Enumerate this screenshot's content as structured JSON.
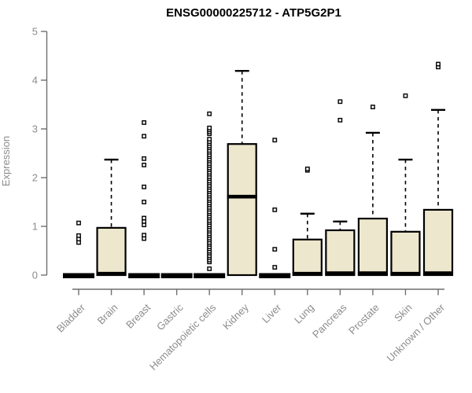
{
  "chart_data": {
    "type": "boxplot",
    "title": "ENSG00000225712 - ATP5G2P1",
    "ylabel": "Expression",
    "xlabel": "",
    "ylim": [
      0,
      5
    ],
    "yticks": [
      0,
      1,
      2,
      3,
      4,
      5
    ],
    "grid": false,
    "legend": false,
    "box_fill": "#EDE7CD",
    "box_border": "#000000",
    "median_color": "#000000",
    "whisker_style": "dashed",
    "outlier_marker": "open-square",
    "axis_color": "#6f6f6f",
    "label_color": "#8c8c8c",
    "categories": [
      "Bladder",
      "Brain",
      "Breast",
      "Gastric",
      "Hematopoietic cells",
      "Kidney",
      "Liver",
      "Lung",
      "Pancreas",
      "Prostate",
      "Skin",
      "Unknown / Other"
    ],
    "boxes": [
      {
        "category": "Bladder",
        "low": 0,
        "q1": 0,
        "median": 0.02,
        "q3": 0.02,
        "high": 0.02,
        "outliers": [
          0.67,
          0.74,
          0.81,
          1.07
        ]
      },
      {
        "category": "Brain",
        "low": 0,
        "q1": 0,
        "median": 0.03,
        "q3": 0.97,
        "high": 2.37,
        "outliers": []
      },
      {
        "category": "Breast",
        "low": 0,
        "q1": 0,
        "median": 0.02,
        "q3": 0.02,
        "high": 0.02,
        "outliers": [
          0.75,
          0.82,
          1.03,
          1.1,
          1.17,
          1.5,
          1.81,
          2.26,
          2.39,
          2.85,
          3.13
        ]
      },
      {
        "category": "Gastric",
        "low": 0,
        "q1": 0,
        "median": 0.02,
        "q3": 0.02,
        "high": 0.02,
        "outliers": []
      },
      {
        "category": "Hematopoietic cells",
        "low": 0,
        "q1": 0,
        "median": 0.02,
        "q3": 0.02,
        "high": 0.02,
        "outliers": [
          0.13,
          0.27,
          0.31,
          0.36,
          0.4,
          0.45,
          0.49,
          0.54,
          0.58,
          0.63,
          0.67,
          0.72,
          0.76,
          0.81,
          0.85,
          0.9,
          0.94,
          0.99,
          1.03,
          1.08,
          1.12,
          1.17,
          1.21,
          1.26,
          1.3,
          1.35,
          1.39,
          1.44,
          1.48,
          1.53,
          1.57,
          1.62,
          1.66,
          1.71,
          1.75,
          1.8,
          1.84,
          1.89,
          1.93,
          1.98,
          2.02,
          2.07,
          2.11,
          2.16,
          2.2,
          2.25,
          2.29,
          2.34,
          2.38,
          2.43,
          2.47,
          2.52,
          2.56,
          2.61,
          2.65,
          2.7,
          2.74,
          2.79,
          2.9,
          2.94,
          2.98,
          3.02,
          3.31
        ]
      },
      {
        "category": "Kidney",
        "low": 0,
        "q1": 0,
        "median": 1.61,
        "q3": 2.69,
        "high": 4.19,
        "outliers": []
      },
      {
        "category": "Liver",
        "low": 0,
        "q1": 0,
        "median": 0.02,
        "q3": 0.02,
        "high": 0.02,
        "outliers": [
          0.16,
          0.53,
          1.34,
          2.77
        ]
      },
      {
        "category": "Lung",
        "low": 0,
        "q1": 0,
        "median": 0.03,
        "q3": 0.73,
        "high": 1.26,
        "outliers": [
          2.15,
          2.18
        ]
      },
      {
        "category": "Pancreas",
        "low": 0,
        "q1": 0,
        "median": 0.04,
        "q3": 0.92,
        "high": 1.1,
        "outliers": [
          3.18,
          3.56
        ]
      },
      {
        "category": "Prostate",
        "low": 0,
        "q1": 0,
        "median": 0.04,
        "q3": 1.16,
        "high": 2.92,
        "outliers": [
          3.45
        ]
      },
      {
        "category": "Skin",
        "low": 0,
        "q1": 0,
        "median": 0.03,
        "q3": 0.89,
        "high": 2.37,
        "outliers": [
          3.68
        ]
      },
      {
        "category": "Unknown / Other",
        "low": 0,
        "q1": 0,
        "median": 0.04,
        "q3": 1.34,
        "high": 3.39,
        "outliers": [
          4.27,
          4.33
        ]
      }
    ]
  }
}
